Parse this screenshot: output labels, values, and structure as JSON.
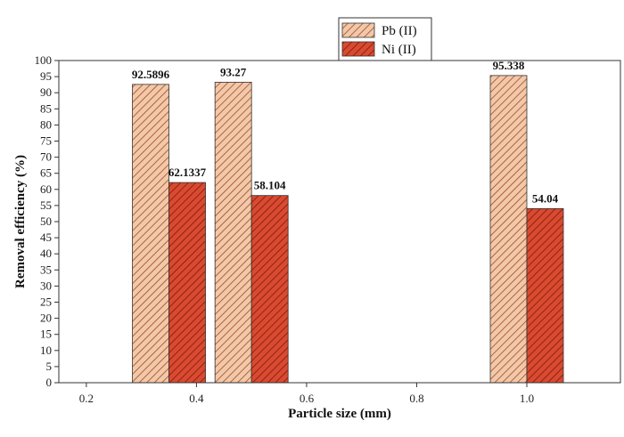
{
  "chart_data": {
    "type": "bar",
    "xlabel": "Particle size (mm)",
    "ylabel": "Removal efficiency (%)",
    "x": [
      0.35,
      0.5,
      1.0
    ],
    "xlim": [
      0.15,
      1.17
    ],
    "xticks": [
      0.2,
      0.4,
      0.6,
      0.8,
      1.0
    ],
    "xtick_labels": [
      "0.2",
      "0.4",
      "0.6",
      "0.8",
      "1.0"
    ],
    "ylim": [
      0,
      100
    ],
    "yticks": [
      0,
      5,
      10,
      15,
      20,
      25,
      30,
      35,
      40,
      45,
      50,
      55,
      60,
      65,
      70,
      75,
      80,
      85,
      90,
      95,
      100
    ],
    "ytick_labels": [
      "0",
      "5",
      "10",
      "15",
      "20",
      "25",
      "30",
      "35",
      "40",
      "45",
      "50",
      "55",
      "60",
      "65",
      "70",
      "75",
      "80",
      "85",
      "90",
      "95",
      "100"
    ],
    "grid": false,
    "legend_position": "top-right",
    "series": [
      {
        "name": "Pb (II)",
        "values": [
          92.5896,
          93.27,
          95.338
        ],
        "labels": [
          "92.5896",
          "93.27",
          "95.338"
        ],
        "color": "#f2c8a8",
        "hatch_color": "#9a4a2a"
      },
      {
        "name": "Ni (II)",
        "values": [
          62.1337,
          58.104,
          54.04
        ],
        "labels": [
          "62.1337",
          "58.104",
          "54.04"
        ],
        "color": "#d94a30",
        "hatch_color": "#7a1a0c"
      }
    ]
  }
}
